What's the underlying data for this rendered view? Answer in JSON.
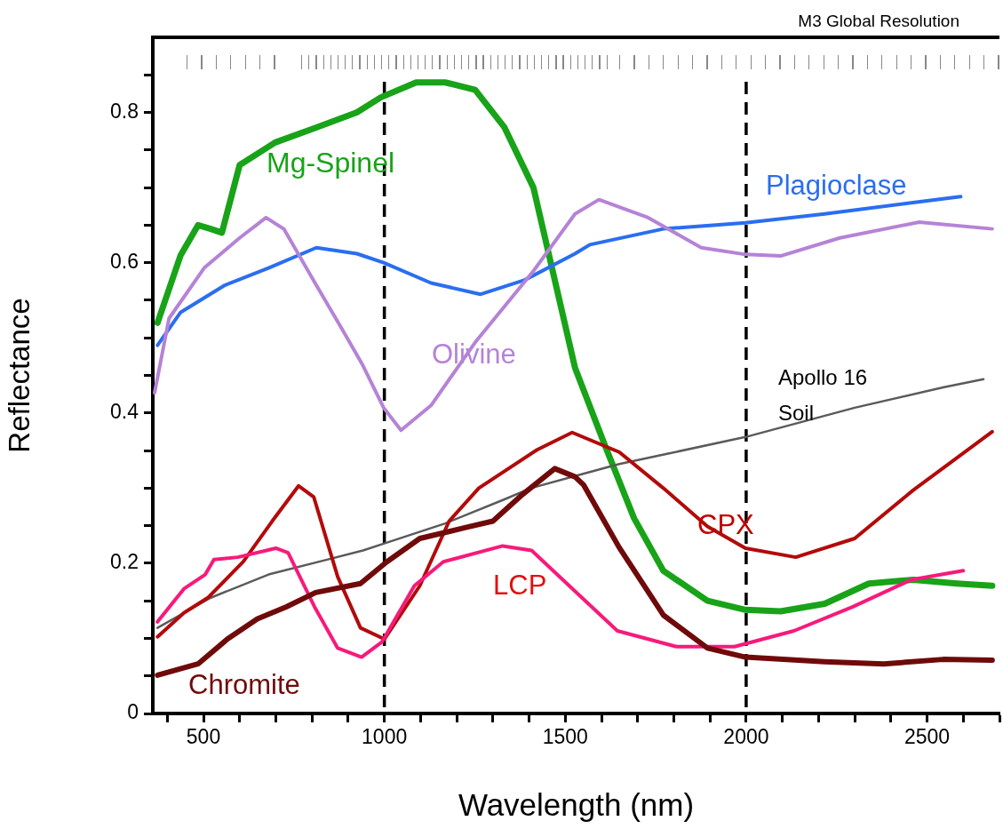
{
  "chart_data": {
    "type": "line",
    "xlabel": "Wavelength (nm)",
    "ylabel": "Reflectance",
    "annotations": [
      "M3 Global Resolution"
    ],
    "xlim": [
      360,
      2700
    ],
    "ylim": [
      0,
      0.9
    ],
    "xticks": [
      {
        "value": 400,
        "label": null
      },
      500,
      {
        "value": 600,
        "label": null
      },
      {
        "value": 700,
        "label": null
      },
      {
        "value": 800,
        "label": null
      },
      {
        "value": 900,
        "label": null
      },
      1000,
      {
        "value": 1100,
        "label": null
      },
      {
        "value": 1200,
        "label": null
      },
      {
        "value": 1300,
        "label": null
      },
      {
        "value": 1400,
        "label": null
      },
      1500,
      {
        "value": 1600,
        "label": null
      },
      {
        "value": 1700,
        "label": null
      },
      {
        "value": 1800,
        "label": null
      },
      {
        "value": 1900,
        "label": null
      },
      2000,
      {
        "value": 2100,
        "label": null
      },
      {
        "value": 2200,
        "label": null
      },
      {
        "value": 2300,
        "label": null
      },
      {
        "value": 2400,
        "label": null
      },
      2500,
      {
        "value": 2600,
        "label": null
      },
      {
        "value": 2700,
        "label": null
      }
    ],
    "yticks": [
      0,
      {
        "value": 0.05,
        "label": null
      },
      {
        "value": 0.1,
        "label": null
      },
      {
        "value": 0.15,
        "label": null
      },
      0.2,
      {
        "value": 0.25,
        "label": null
      },
      {
        "value": 0.3,
        "label": null
      },
      {
        "value": 0.35,
        "label": null
      },
      0.4,
      {
        "value": 0.45,
        "label": null
      },
      {
        "value": 0.5,
        "label": null
      },
      {
        "value": 0.55,
        "label": null
      },
      0.6,
      {
        "value": 0.65,
        "label": null
      },
      {
        "value": 0.7,
        "label": null
      },
      {
        "value": 0.75,
        "label": null
      },
      0.8,
      {
        "value": 0.85,
        "label": null
      }
    ],
    "marker": "none",
    "line_style": "solid",
    "legend": false,
    "grid": false,
    "ref_lines": [
      {
        "axis": "x",
        "value": 1000,
        "color": "#000000",
        "line_style": "dashed"
      },
      {
        "axis": "x",
        "value": 2000,
        "color": "#000000",
        "line_style": "dashed"
      }
    ],
    "series": [
      {
        "name": "Mg-Spinel",
        "color": "#18a318",
        "x": [
          373,
          437,
          485,
          520,
          551,
          600,
          698,
          812,
          924,
          990,
          1088,
          1168,
          1251,
          1332,
          1412,
          1527,
          1607,
          1690,
          1771,
          1893,
          1998,
          2095,
          2217,
          2339,
          2461,
          2583,
          2680
        ],
        "values": [
          0.52,
          0.61,
          0.65,
          0.645,
          0.64,
          0.73,
          0.76,
          0.78,
          0.8,
          0.82,
          0.84,
          0.84,
          0.83,
          0.78,
          0.7,
          0.46,
          0.36,
          0.26,
          0.19,
          0.15,
          0.138,
          0.136,
          0.146,
          0.173,
          0.178,
          0.173,
          0.17
        ]
      },
      {
        "name": "Plagioclase",
        "color": "#2a6ef0",
        "x": [
          373,
          437,
          559,
          680,
          812,
          924,
          998,
          1129,
          1266,
          1388,
          1527,
          1568,
          1771,
          1998,
          2217,
          2461,
          2593
        ],
        "values": [
          0.49,
          0.534,
          0.57,
          0.593,
          0.62,
          0.612,
          0.6,
          0.573,
          0.558,
          0.577,
          0.612,
          0.624,
          0.645,
          0.653,
          0.665,
          0.68,
          0.688
        ]
      },
      {
        "name": "Olivine",
        "color": "#b583d6",
        "x": [
          365,
          405,
          502,
          600,
          673,
          722,
          812,
          885,
          941,
          998,
          1046,
          1129,
          1251,
          1412,
          1527,
          1593,
          1729,
          1876,
          1998,
          2095,
          2259,
          2478,
          2680
        ],
        "values": [
          0.427,
          0.526,
          0.593,
          0.633,
          0.66,
          0.645,
          0.57,
          0.51,
          0.463,
          0.407,
          0.377,
          0.41,
          0.494,
          0.589,
          0.665,
          0.684,
          0.66,
          0.62,
          0.611,
          0.609,
          0.633,
          0.654,
          0.645
        ]
      },
      {
        "name": "Apollo 16 Soil",
        "color": "#5a5a5a",
        "x": [
          373,
          520,
          680,
          844,
          941,
          998,
          1168,
          1332,
          1405,
          1527,
          1649,
          1998,
          2300,
          2544,
          2656
        ],
        "values": [
          0.114,
          0.154,
          0.185,
          0.205,
          0.217,
          0.226,
          0.253,
          0.285,
          0.3,
          0.316,
          0.332,
          0.368,
          0.407,
          0.434,
          0.445
        ]
      },
      {
        "name": "CPX",
        "color": "#b30a0a",
        "x": [
          373,
          446,
          512,
          610,
          690,
          763,
          805,
          871,
          934,
          1000,
          1098,
          1179,
          1261,
          1422,
          1519,
          1649,
          1771,
          1893,
          1998,
          2137,
          2300,
          2461,
          2680
        ],
        "values": [
          0.102,
          0.134,
          0.154,
          0.202,
          0.256,
          0.303,
          0.288,
          0.182,
          0.114,
          0.099,
          0.17,
          0.256,
          0.3,
          0.351,
          0.374,
          0.348,
          0.3,
          0.249,
          0.22,
          0.208,
          0.233,
          0.297,
          0.375
        ]
      },
      {
        "name": "LCP",
        "color": "#f71a7a",
        "x": [
          373,
          446,
          505,
          529,
          595,
          700,
          734,
          807,
          871,
          937,
          993,
          1083,
          1163,
          1327,
          1407,
          1522,
          1644,
          1807,
          1968,
          2132,
          2295,
          2456,
          2600
        ],
        "values": [
          0.122,
          0.166,
          0.185,
          0.205,
          0.208,
          0.22,
          0.214,
          0.142,
          0.087,
          0.075,
          0.095,
          0.17,
          0.202,
          0.223,
          0.217,
          0.165,
          0.11,
          0.089,
          0.089,
          0.11,
          0.142,
          0.178,
          0.19
        ]
      },
      {
        "name": "Chromite",
        "color": "#700a0a",
        "x": [
          373,
          485,
          566,
          649,
          729,
          810,
          934,
          1007,
          1098,
          1220,
          1300,
          1383,
          1471,
          1527,
          1551,
          1649,
          1771,
          1893,
          1998,
          2217,
          2380,
          2544,
          2680
        ],
        "values": [
          0.051,
          0.066,
          0.099,
          0.126,
          0.142,
          0.161,
          0.173,
          0.202,
          0.233,
          0.247,
          0.256,
          0.292,
          0.326,
          0.315,
          0.304,
          0.221,
          0.131,
          0.087,
          0.075,
          0.069,
          0.066,
          0.072,
          0.071
        ]
      }
    ]
  }
}
